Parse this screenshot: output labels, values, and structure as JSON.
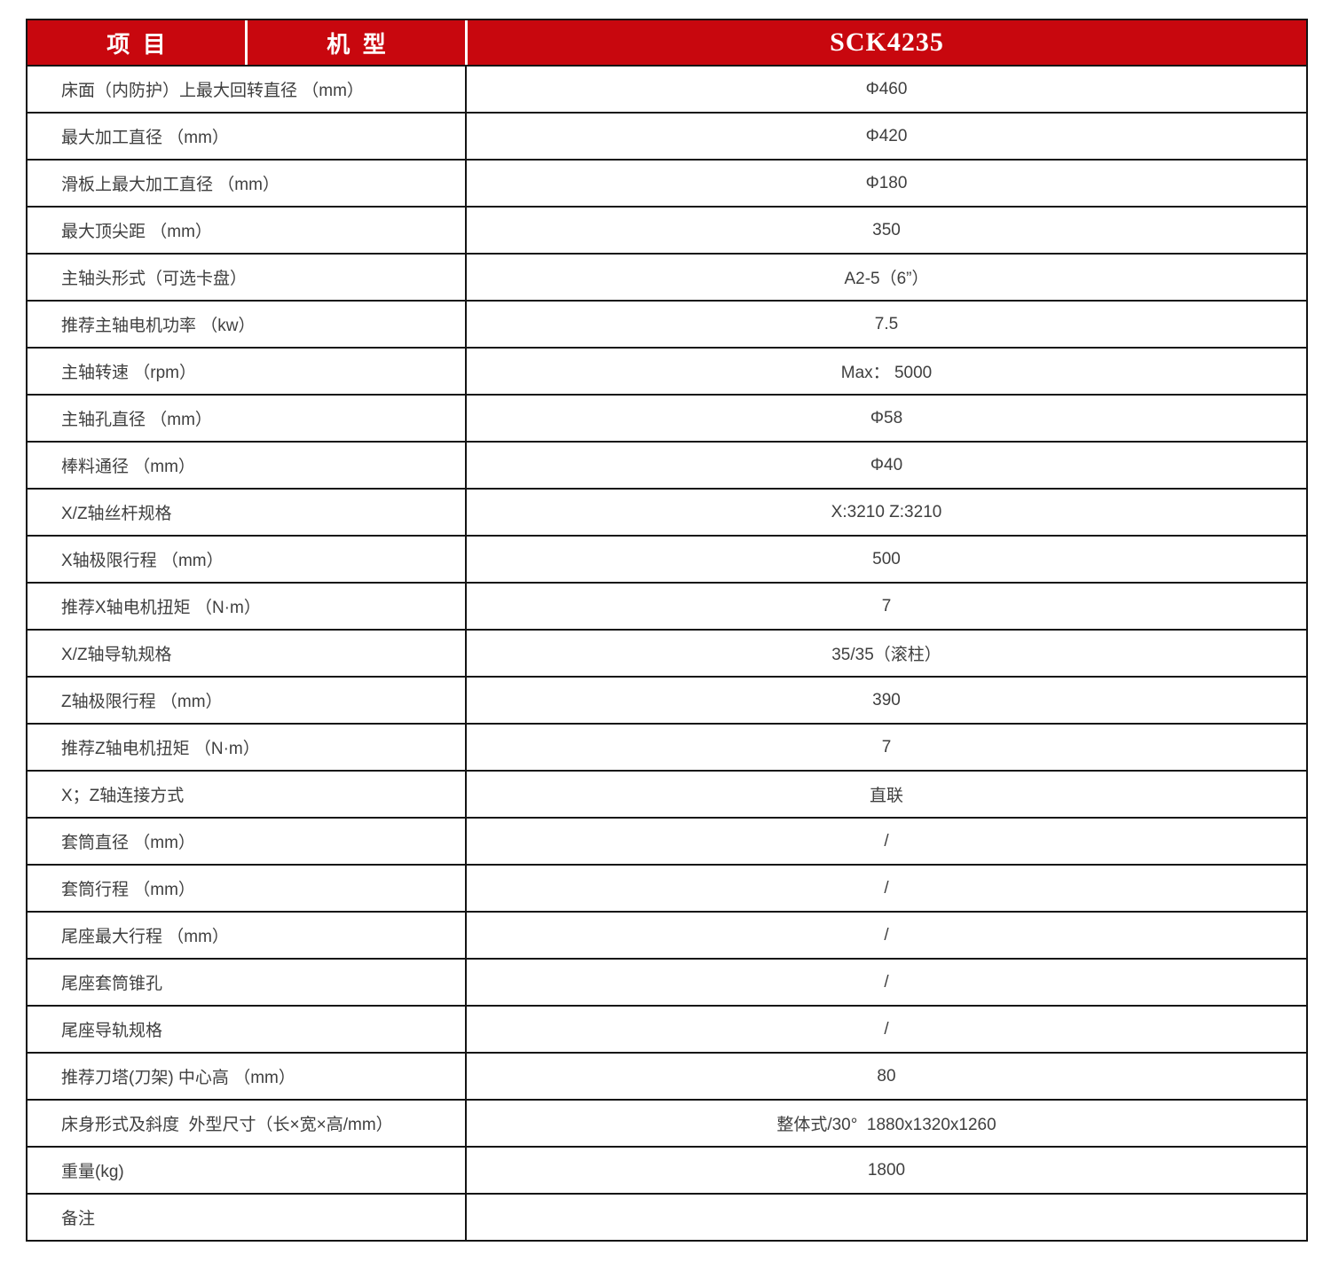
{
  "colors": {
    "header_red": "#c8070e",
    "border_black": "#141414",
    "header_text": "#ffffff",
    "body_text": "#3f3f3f"
  },
  "header": {
    "item_label": "项  目",
    "model_label": "机  型",
    "model_value": "SCK4235"
  },
  "table": {
    "rows": [
      {
        "label": "床面（内防护）上最大回转直径 （mm）",
        "value": "Φ460"
      },
      {
        "label": "最大加工直径 （mm）",
        "value": "Φ420"
      },
      {
        "label": "滑板上最大加工直径 （mm）",
        "value": "Φ180"
      },
      {
        "label": "最大顶尖距 （mm）",
        "value": "350"
      },
      {
        "label": "主轴头形式（可选卡盘）",
        "value": "A2-5（6”）"
      },
      {
        "label": "推荐主轴电机功率 （kw）",
        "value": "7.5"
      },
      {
        "label": "主轴转速 （rpm）",
        "value": "Max： 5000"
      },
      {
        "label": "主轴孔直径 （mm）",
        "value": "Φ58"
      },
      {
        "label": "棒料通径 （mm）",
        "value": "Φ40"
      },
      {
        "label": "X/Z轴丝杆规格",
        "value": "X:3210 Z:3210"
      },
      {
        "label": "X轴极限行程 （mm）",
        "value": "500"
      },
      {
        "label": "推荐X轴电机扭矩 （N·m）",
        "value": "7"
      },
      {
        "label": "X/Z轴导轨规格",
        "value": "35/35（滚柱）"
      },
      {
        "label": "Z轴极限行程 （mm）",
        "value": "390"
      },
      {
        "label": "推荐Z轴电机扭矩 （N·m）",
        "value": "7"
      },
      {
        "label": "X；Z轴连接方式",
        "value": "直联"
      },
      {
        "label": "套筒直径 （mm）",
        "value": "/"
      },
      {
        "label": "套筒行程 （mm）",
        "value": "/"
      },
      {
        "label": "尾座最大行程 （mm）",
        "value": "/"
      },
      {
        "label": "尾座套筒锥孔",
        "value": "/"
      },
      {
        "label": "尾座导轨规格",
        "value": "/"
      },
      {
        "label": "推荐刀塔(刀架) 中心高 （mm）",
        "value": "80"
      },
      {
        "label": "床身形式及斜度  外型尺寸（长×宽×高/mm）",
        "value": "整体式/30°  1880x1320x1260"
      },
      {
        "label": "重量(kg)",
        "value": "1800"
      },
      {
        "label": "备注",
        "value": ""
      }
    ]
  }
}
